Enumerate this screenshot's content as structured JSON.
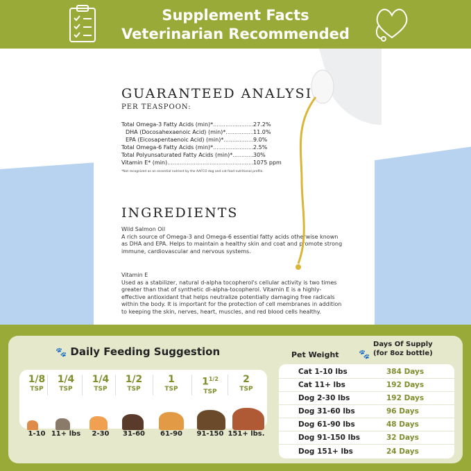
{
  "header": {
    "title_line1": "Supplement Facts",
    "title_line2": "Veterinarian Recommended",
    "left_icon": "clipboard-checklist-icon",
    "right_icon": "heart-stethoscope-icon"
  },
  "analysis": {
    "title": "GUARANTEED ANALYSIS",
    "subtitle": "PER TEASPOON:",
    "rows": [
      {
        "name": "Total Omega-3 Fatty Acids (min)*",
        "value": "27.2%"
      },
      {
        "name": "DHA (Docosahexaenoic Acid) (min)*",
        "value": "11.0%"
      },
      {
        "name": "EPA (Eicosapentaenoic Acid) (min)*",
        "value": "9.0%"
      },
      {
        "name": "Total Omega-6 Fatty Acids (min)*",
        "value": "2.5%"
      },
      {
        "name": "Total Polyunsaturated Fatty Acids (min)*",
        "value": "30%"
      },
      {
        "name": "Vitamin E* (min)",
        "value": "1075 ppm"
      }
    ],
    "footnote": "*Not recognized as an essential nutrient by the AAFCO dog and cat food nutritional profile."
  },
  "ingredients": {
    "title": "INGREDIENTS",
    "items": [
      {
        "name": "Wild Salmon Oil",
        "text": "A rich source of Omega-3 and Omega-6 essential fatty acids otherwise known as DHA and EPA. Helps to maintain a healthy skin and coat and promote strong immune, cardiovascular and nervous systems."
      },
      {
        "name": "Vitamin E",
        "text": "Used as a stabilizer, natural d-alpha tocopherol's cellular activity is two times greater than that of synthetic dl-alpha-tocopherol. Vitamin E is a highly-effective antioxidant that helps neutralize potentially damaging free radicals within the body. It is important for the protection of cell membranes in addition to keeping the skin, nerves, heart, muscles, and red blood cells healthy."
      }
    ]
  },
  "feeding": {
    "title": "Daily Feeding Suggestion",
    "unit": "TSP",
    "columns": [
      {
        "amount": "1/8",
        "weight": "1-10",
        "pet": "cat",
        "color": "#e08a4a"
      },
      {
        "amount": "1/4",
        "weight": "11+ lbs",
        "pet": "cat",
        "color": "#8a7a6a"
      },
      {
        "amount": "1/4",
        "weight": "2-30",
        "pet": "corgi",
        "color": "#f0a050"
      },
      {
        "amount": "1/2",
        "weight": "31-60",
        "pet": "beagle",
        "color": "#5a3a2a"
      },
      {
        "amount": "1",
        "weight": "61-90",
        "pet": "golden-retriever",
        "color": "#e39a45"
      },
      {
        "amount": "1",
        "amount_sup": "1/2",
        "weight": "91-150",
        "pet": "german-shepherd",
        "color": "#6a4a2a"
      },
      {
        "amount": "2",
        "weight": "151+ lbs.",
        "pet": "saint-bernard",
        "color": "#b05a35"
      }
    ]
  },
  "supply": {
    "col1": "Pet Weight",
    "col2_line1": "Days Of Supply",
    "col2_line2": "(for 8oz bottle)",
    "rows": [
      {
        "weight": "Cat 1-10 lbs",
        "days": "384 Days"
      },
      {
        "weight": "Cat 11+ lbs",
        "days": "192 Days"
      },
      {
        "weight": "Dog 2-30 lbs",
        "days": "192 Days"
      },
      {
        "weight": "Dog 31-60 lbs",
        "days": "96 Days"
      },
      {
        "weight": "Dog 61-90 lbs",
        "days": "48 Days"
      },
      {
        "weight": "Dog 91-150 lbs",
        "days": "32 Days"
      },
      {
        "weight": "Dog 151+ lbs",
        "days": "24 Days"
      }
    ]
  },
  "colors": {
    "brand_green": "#9aaa38",
    "text_green": "#7e8e2c",
    "panel": "#e5e8cb",
    "blue": "#b7d3f0"
  }
}
